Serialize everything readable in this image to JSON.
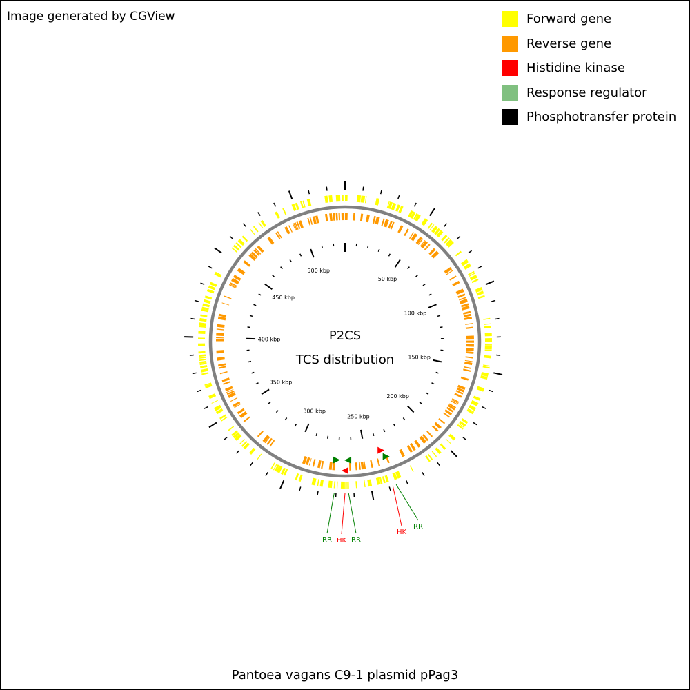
{
  "header_note": "Image generated by CGView",
  "legend": [
    {
      "label": "Forward gene",
      "color": "#ffff00"
    },
    {
      "label": "Reverse gene",
      "color": "#ff9900"
    },
    {
      "label": "Histidine kinase",
      "color": "#ff0000"
    },
    {
      "label": "Response regulator",
      "color": "#80c080"
    },
    {
      "label": "Phosphotransfer protein",
      "color": "#000000"
    }
  ],
  "map": {
    "title_line1": "P2CS",
    "title_line2": "TCS distribution",
    "caption": "Pantoea vagans C9-1 plasmid pPag3",
    "sequence_length_kbp": 530,
    "tick_labels": [
      "50 kbp",
      "100 kbp",
      "150 kbp",
      "200 kbp",
      "250 kbp",
      "300 kbp",
      "350 kbp",
      "400 kbp",
      "450 kbp",
      "500 kbp"
    ],
    "backbone_color": "#808080",
    "label_colors": {
      "HK": "#ff0000",
      "RR": "#008000"
    },
    "feature_labels": [
      {
        "text": "RR",
        "type": "RR",
        "position_kbp": 271
      },
      {
        "text": "HK",
        "type": "HK",
        "position_kbp": 265
      },
      {
        "text": "RR",
        "type": "RR",
        "position_kbp": 263
      },
      {
        "text": "HK",
        "type": "HK",
        "position_kbp": 238
      },
      {
        "text": "RR",
        "type": "RR",
        "position_kbp": 236
      }
    ]
  }
}
